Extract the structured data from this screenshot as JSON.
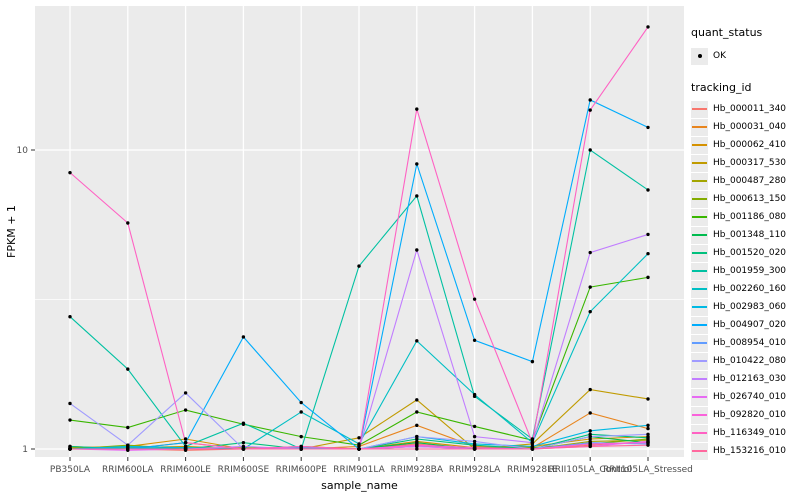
{
  "legend": {
    "quant_status_title": "quant_status",
    "quant_status_items": [
      {
        "label": "OK",
        "marker": "black-point"
      }
    ],
    "tracking_title": "tracking_id"
  },
  "chart_data": {
    "type": "line",
    "title": "",
    "xlabel": "sample_name",
    "ylabel": "FPKM + 1",
    "y_scale": "log10",
    "y_ticks": [
      1,
      10
    ],
    "ylim": [
      0.93,
      29.7
    ],
    "grid": "on",
    "legend_position": "right",
    "panel_bg": "#EBEBEB",
    "grid_major_color": "#FFFFFF",
    "grid_minor_color": "#FFFFFF",
    "point_color": "#000000",
    "axis_text_color": "#4D4D4D",
    "categories": [
      "PB350LA",
      "RRIM600LA",
      "RRIM600LE",
      "RRIM600SE",
      "RRIM600PE",
      "RRIM901LA",
      "RRIM928BA",
      "RRIM928LA",
      "RRIM928LE",
      "RRII105LA_Control",
      "RRII105LA_Stressed"
    ],
    "series": [
      {
        "name": "Hb_000011_340",
        "color": "#F8766D",
        "values": [
          1.0,
          1.0,
          0.99,
          1.0,
          1.0,
          1.0,
          1.04,
          1.0,
          1.0,
          1.03,
          1.06
        ]
      },
      {
        "name": "Hb_000031_040",
        "color": "#E8851E",
        "values": [
          1.02,
          1.0,
          1.05,
          1.0,
          1.0,
          1.02,
          1.2,
          1.02,
          1.01,
          1.32,
          1.17
        ]
      },
      {
        "name": "Hb_000062_410",
        "color": "#D59100",
        "values": [
          1.01,
          1.02,
          1.08,
          1.0,
          1.01,
          1.0,
          1.06,
          1.01,
          1.02,
          1.08,
          1.1
        ]
      },
      {
        "name": "Hb_000317_530",
        "color": "#C09B00",
        "values": [
          1.0,
          1.01,
          1.02,
          1.0,
          1.0,
          1.09,
          1.46,
          1.0,
          1.04,
          1.58,
          1.47
        ]
      },
      {
        "name": "Hb_000487_280",
        "color": "#A3A500",
        "values": [
          1.01,
          1.0,
          1.0,
          1.01,
          1.0,
          1.0,
          1.03,
          1.0,
          1.0,
          1.06,
          1.07
        ]
      },
      {
        "name": "Hb_000613_150",
        "color": "#84AC00",
        "values": [
          1.0,
          1.03,
          1.0,
          1.0,
          1.02,
          1.0,
          1.02,
          1.01,
          1.01,
          1.04,
          1.08
        ]
      },
      {
        "name": "Hb_001186_080",
        "color": "#39B600",
        "values": [
          1.25,
          1.18,
          1.35,
          1.21,
          1.1,
          1.03,
          1.33,
          1.19,
          1.07,
          3.48,
          3.75
        ]
      },
      {
        "name": "Hb_001348_110",
        "color": "#00BB4E",
        "values": [
          1.0,
          1.0,
          1.01,
          1.0,
          1.0,
          1.0,
          1.05,
          1.0,
          1.0,
          1.1,
          1.05
        ]
      },
      {
        "name": "Hb_001520_020",
        "color": "#00C07D",
        "values": [
          1.02,
          1.0,
          1.0,
          1.05,
          1.0,
          1.0,
          1.08,
          1.03,
          1.0,
          1.12,
          1.09
        ]
      },
      {
        "name": "Hb_001959_300",
        "color": "#00C1A2",
        "values": [
          2.77,
          1.85,
          1.02,
          1.22,
          1.0,
          4.09,
          7.02,
          1.5,
          1.08,
          10.0,
          7.35
        ]
      },
      {
        "name": "Hb_002260_160",
        "color": "#00BFC4",
        "values": [
          1.0,
          1.01,
          1.0,
          1.0,
          1.33,
          1.04,
          2.3,
          1.52,
          1.05,
          2.88,
          4.5
        ]
      },
      {
        "name": "Hb_002983_060",
        "color": "#00B9E3",
        "values": [
          1.0,
          1.02,
          1.01,
          1.0,
          1.0,
          1.0,
          1.1,
          1.04,
          1.02,
          1.15,
          1.2
        ]
      },
      {
        "name": "Hb_004907_020",
        "color": "#00ACFC",
        "values": [
          1.0,
          1.0,
          1.05,
          2.37,
          1.43,
          1.0,
          8.98,
          2.31,
          1.96,
          14.7,
          11.9
        ]
      },
      {
        "name": "Hb_008954_010",
        "color": "#619CFF",
        "values": [
          1.0,
          1.0,
          1.0,
          1.0,
          1.01,
          1.0,
          1.02,
          1.0,
          1.0,
          1.05,
          1.04
        ]
      },
      {
        "name": "Hb_010422_080",
        "color": "#A09BFF",
        "values": [
          1.42,
          1.03,
          1.54,
          1.0,
          1.0,
          1.0,
          1.1,
          1.06,
          1.0,
          1.1,
          1.12
        ]
      },
      {
        "name": "Hb_012163_030",
        "color": "#C17DFF",
        "values": [
          1.0,
          1.0,
          1.0,
          1.02,
          1.0,
          1.0,
          4.63,
          1.1,
          1.05,
          4.54,
          5.22
        ]
      },
      {
        "name": "Hb_026740_010",
        "color": "#E76BF3",
        "values": [
          1.0,
          0.99,
          1.0,
          1.0,
          1.0,
          1.0,
          1.02,
          1.0,
          1.0,
          1.02,
          1.06
        ]
      },
      {
        "name": "Hb_092820_010",
        "color": "#FA62DB",
        "values": [
          1.0,
          1.0,
          1.0,
          1.0,
          1.0,
          1.0,
          1.03,
          1.01,
          1.0,
          1.04,
          1.05
        ]
      },
      {
        "name": "Hb_116349_010",
        "color": "#FF61C3",
        "values": [
          8.4,
          5.7,
          1.05,
          1.0,
          1.02,
          1.0,
          13.7,
          3.17,
          1.05,
          13.6,
          25.8
        ]
      },
      {
        "name": "Hb_153216_010",
        "color": "#FF689E",
        "values": [
          1.0,
          1.0,
          1.0,
          1.0,
          1.0,
          1.0,
          1.0,
          1.0,
          1.0,
          1.02,
          1.03
        ]
      }
    ]
  }
}
